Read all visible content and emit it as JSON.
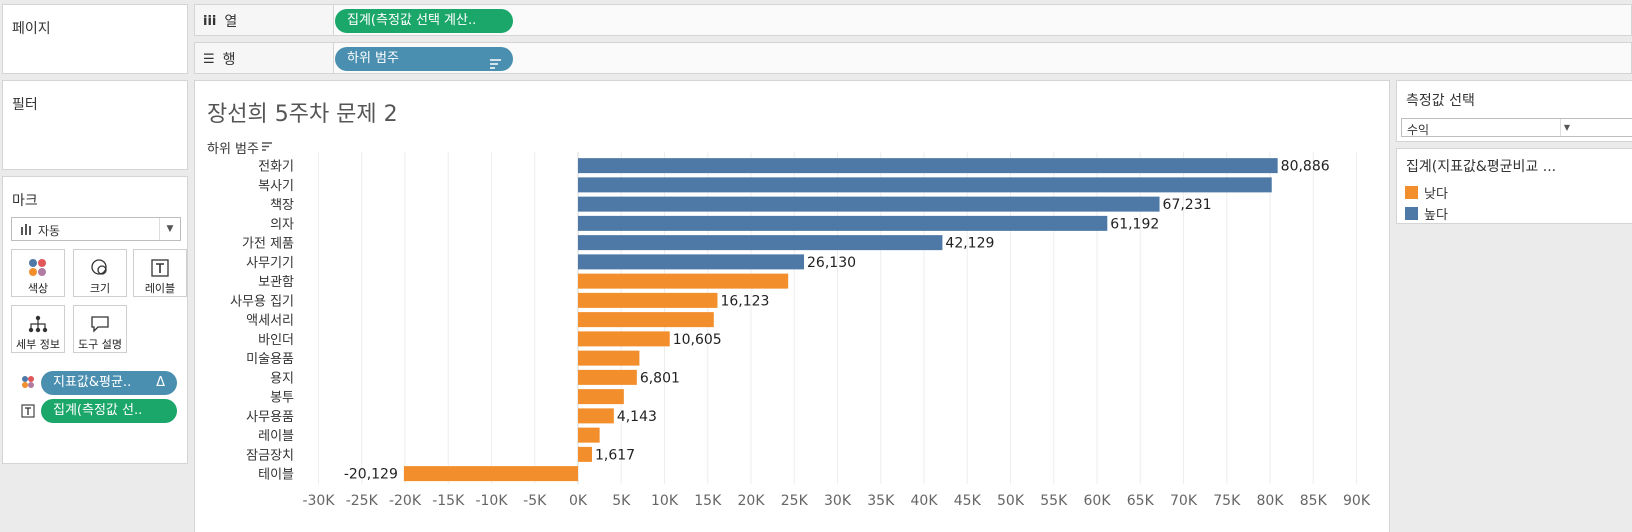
{
  "left_panels": {
    "pages": {
      "title": "페이지"
    },
    "filters": {
      "title": "필터"
    },
    "marks": {
      "title": "마크",
      "mark_type": "자동",
      "buttons": {
        "color": "색상",
        "size": "크기",
        "label": "레이블",
        "detail": "세부 정보",
        "tooltip": "도구 설명"
      },
      "fields": [
        {
          "label": "지표값&평균..",
          "suffix": "Δ"
        },
        {
          "label": "집계(측정값 선.."
        }
      ]
    }
  },
  "shelves": {
    "columns": {
      "label": "열",
      "pill": "집계(측정값 선택 계산.."
    },
    "rows": {
      "label": "행",
      "pill": "하위 범주"
    }
  },
  "chart_title": "장선희 5주차 문제 2",
  "right_panels": {
    "param": {
      "title": "측정값 선택",
      "value": "수익"
    },
    "legend": {
      "title": "집계(지표값&평균비교 ...",
      "items": [
        {
          "label": "낮다",
          "color": "#f28e2b"
        },
        {
          "label": "높다",
          "color": "#4e79a7"
        }
      ]
    }
  },
  "chart_data": {
    "type": "bar",
    "orientation": "horizontal",
    "row_header": "하위 범주",
    "categories": [
      "전화기",
      "복사기",
      "책장",
      "의자",
      "가전 제품",
      "사무기기",
      "보관함",
      "사무용 집기",
      "액세서리",
      "바인더",
      "미술용품",
      "용지",
      "봉투",
      "사무용품",
      "레이블",
      "잠금장치",
      "테이블"
    ],
    "values": [
      80886,
      80200,
      67231,
      61192,
      42129,
      26130,
      24300,
      16123,
      15700,
      10605,
      7100,
      6801,
      5300,
      4143,
      2500,
      1617,
      -20129
    ],
    "data_labels": [
      "80,886",
      "",
      "67,231",
      "61,192",
      "42,129",
      "26,130",
      "",
      "16,123",
      "",
      "10,605",
      "",
      "6,801",
      "",
      "4,143",
      "",
      "1,617",
      "-20,129"
    ],
    "groups": [
      "높다",
      "높다",
      "높다",
      "높다",
      "높다",
      "높다",
      "낮다",
      "낮다",
      "낮다",
      "낮다",
      "낮다",
      "낮다",
      "낮다",
      "낮다",
      "낮다",
      "낮다",
      "낮다"
    ],
    "colors": {
      "높다": "#4e79a7",
      "낮다": "#f28e2b"
    },
    "xlim": [
      -32000,
      94000
    ],
    "xticks": [
      -30000,
      -25000,
      -20000,
      -15000,
      -10000,
      -5000,
      0,
      5000,
      10000,
      15000,
      20000,
      25000,
      30000,
      35000,
      40000,
      45000,
      50000,
      55000,
      60000,
      65000,
      70000,
      75000,
      80000,
      85000,
      90000
    ],
    "xtick_labels": [
      "-30K",
      "-25K",
      "-20K",
      "-15K",
      "-10K",
      "-5K",
      "0K",
      "5K",
      "10K",
      "15K",
      "20K",
      "25K",
      "30K",
      "35K",
      "40K",
      "45K",
      "50K",
      "55K",
      "60K",
      "65K",
      "70K",
      "75K",
      "80K",
      "85K",
      "90K"
    ],
    "grid": true
  }
}
